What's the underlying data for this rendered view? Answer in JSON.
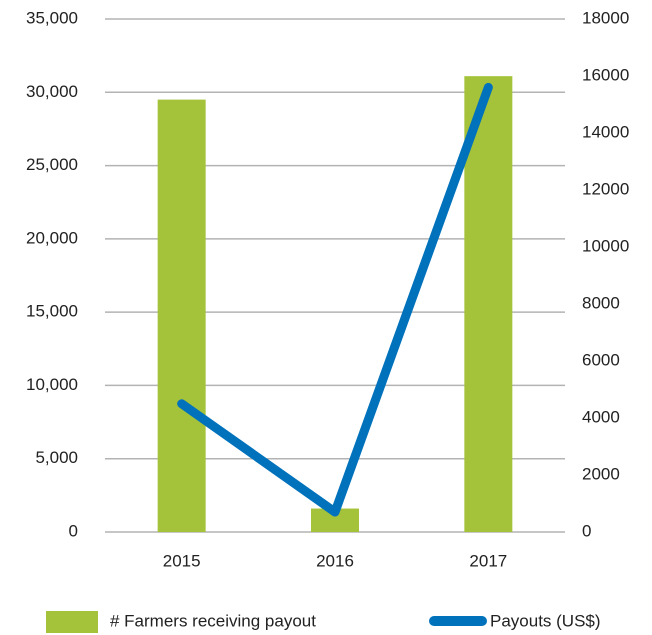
{
  "chart_data": {
    "type": "bar",
    "categories": [
      "2015",
      "2016",
      "2017"
    ],
    "series": [
      {
        "name": "# Farmers receiving payout",
        "type": "bar",
        "color": "#a5c33a",
        "values": [
          29500,
          1600,
          31100
        ]
      },
      {
        "name": "Payouts (US$)",
        "type": "line",
        "axis": "y2",
        "color": "#0072bc",
        "values": [
          4500,
          700,
          15600
        ]
      }
    ],
    "ylim": [
      0,
      35000
    ],
    "yticks": [
      0,
      {
        "value": 5000,
        "label": "5,000"
      },
      {
        "value": 10000,
        "label": "10,000"
      },
      {
        "value": 15000,
        "label": "15,000"
      },
      {
        "value": 20000,
        "label": "20,000"
      },
      {
        "value": 25000,
        "label": "25,000"
      },
      {
        "value": 30000,
        "label": "30,000"
      },
      {
        "value": 35000,
        "label": "35,000"
      }
    ],
    "y2lim": [
      0,
      18000
    ],
    "y2ticks": [
      0,
      2000,
      4000,
      6000,
      8000,
      10000,
      12000,
      14000,
      16000,
      18000
    ],
    "grid": true
  }
}
